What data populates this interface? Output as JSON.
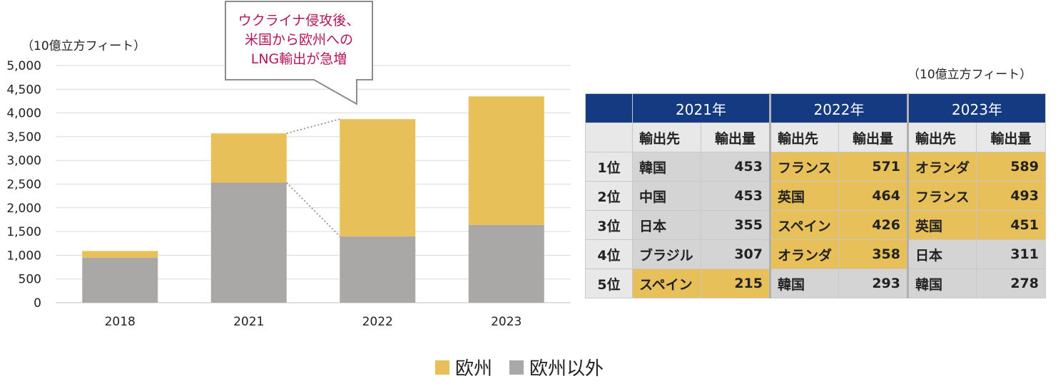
{
  "chart_data": {
    "type": "bar",
    "stacked": true,
    "unit": "（10億立方フィート）",
    "categories": [
      "2018",
      "2021",
      "2022",
      "2023"
    ],
    "series": [
      {
        "name": "欧州以外",
        "values": [
          950,
          2530,
          1400,
          1640
        ],
        "color": "#aaa7a7"
      },
      {
        "name": "欧州",
        "values": [
          140,
          1040,
          2470,
          2710
        ],
        "color": "#e8c05a"
      }
    ],
    "ylim": [
      0,
      5000
    ],
    "yticks": [
      "0",
      "500",
      "1,000",
      "1,500",
      "2,000",
      "2,500",
      "3,000",
      "3,500",
      "4,000",
      "4,500",
      "5,000"
    ],
    "grid": true,
    "legend_position": "bottom",
    "annotation": [
      "ウクライナ侵攻後、",
      "米国から欧州への",
      "LNG輸出が急増"
    ]
  },
  "table": {
    "unit": "（10億立方フィート）",
    "years": [
      "2021年",
      "2022年",
      "2023年"
    ],
    "col_dest": "輸出先",
    "col_vol": "輸出量",
    "rows": [
      {
        "rank": "1位",
        "cells": [
          [
            "韓国",
            "453",
            "noneu"
          ],
          [
            "フランス",
            "571",
            "eu"
          ],
          [
            "オランダ",
            "589",
            "eu"
          ]
        ]
      },
      {
        "rank": "2位",
        "cells": [
          [
            "中国",
            "453",
            "noneu"
          ],
          [
            "英国",
            "464",
            "eu"
          ],
          [
            "フランス",
            "493",
            "eu"
          ]
        ]
      },
      {
        "rank": "3位",
        "cells": [
          [
            "日本",
            "355",
            "noneu"
          ],
          [
            "スペイン",
            "426",
            "eu"
          ],
          [
            "英国",
            "451",
            "eu"
          ]
        ]
      },
      {
        "rank": "4位",
        "cells": [
          [
            "ブラジル",
            "307",
            "noneu"
          ],
          [
            "オランダ",
            "358",
            "eu"
          ],
          [
            "日本",
            "311",
            "noneu"
          ]
        ]
      },
      {
        "rank": "5位",
        "cells": [
          [
            "スペイン",
            "215",
            "eu"
          ],
          [
            "韓国",
            "293",
            "noneu"
          ],
          [
            "韓国",
            "278",
            "noneu"
          ]
        ]
      }
    ]
  },
  "colors": {
    "europe": "#e8c05a",
    "non_europe": "#aaa7a7",
    "header": "#143a82",
    "annotation": "#b4145a"
  }
}
